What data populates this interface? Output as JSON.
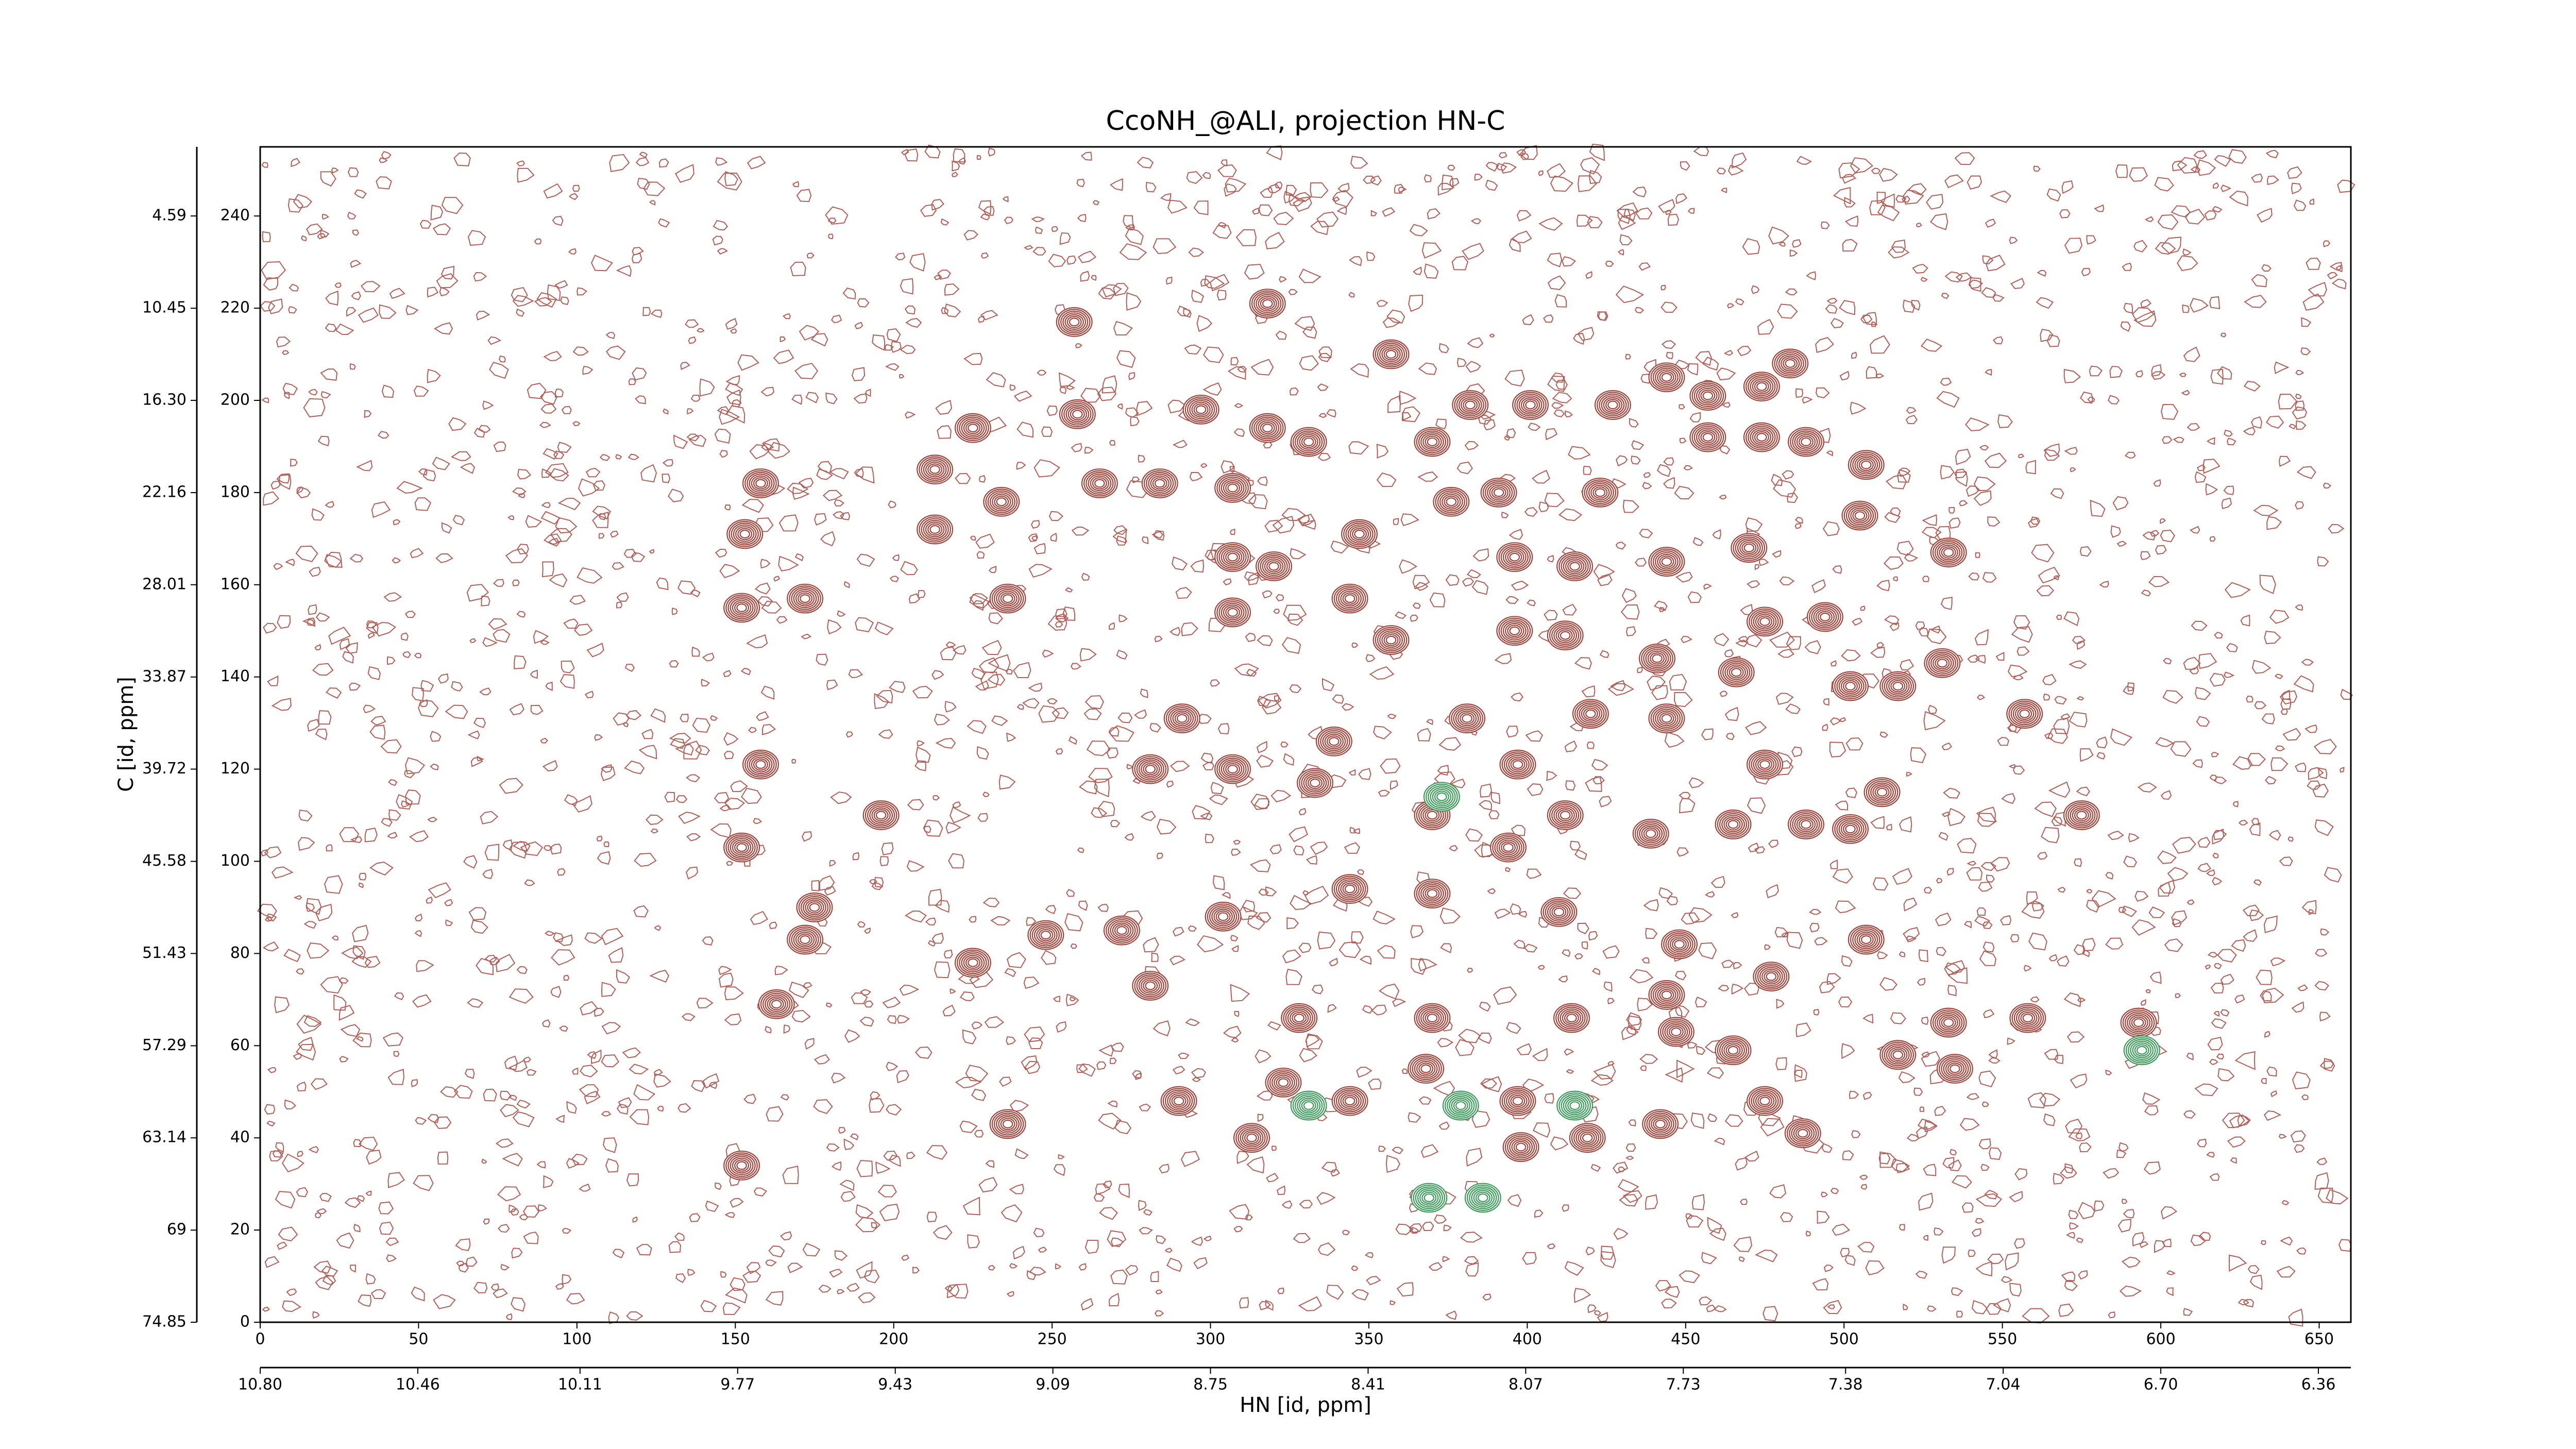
{
  "chart_data": {
    "type": "contour",
    "title": "CcoNH_@ALI, projection HN-C",
    "x_label": "HN [id, ppm]",
    "y_label": "C [id, ppm]",
    "xlim": [
      0,
      660
    ],
    "xticks": [
      0,
      50,
      100,
      150,
      200,
      250,
      300,
      350,
      400,
      450,
      500,
      550,
      600,
      650
    ],
    "ylim": [
      0,
      255
    ],
    "yticks": [
      0,
      20,
      40,
      60,
      80,
      100,
      120,
      140,
      160,
      180,
      200,
      220,
      240
    ],
    "x2lim": [
      10.8,
      6.29
    ],
    "x2ticks": [
      {
        "value": 10.8,
        "label": "10.80"
      },
      {
        "value": 10.46,
        "label": "10.46"
      },
      {
        "value": 10.11,
        "label": "10.11"
      },
      {
        "value": 9.77,
        "label": "9.77"
      },
      {
        "value": 9.43,
        "label": "9.43"
      },
      {
        "value": 9.09,
        "label": "9.09"
      },
      {
        "value": 8.75,
        "label": "8.75"
      },
      {
        "value": 8.41,
        "label": "8.41"
      },
      {
        "value": 8.07,
        "label": "8.07"
      },
      {
        "value": 7.73,
        "label": "7.73"
      },
      {
        "value": 7.38,
        "label": "7.38"
      },
      {
        "value": 7.04,
        "label": "7.04"
      },
      {
        "value": 6.7,
        "label": "6.70"
      },
      {
        "value": 6.36,
        "label": "6.36"
      }
    ],
    "y2lim": [
      74.85,
      0.2
    ],
    "y2ticks": [
      74.85,
      69,
      {
        "value": 63.14,
        "label": "63.14"
      },
      {
        "value": 57.29,
        "label": "57.29"
      },
      {
        "value": 51.43,
        "label": "51.43"
      },
      {
        "value": 45.58,
        "label": "45.58"
      },
      {
        "value": 39.72,
        "label": "39.72"
      },
      {
        "value": 33.87,
        "label": "33.87"
      },
      {
        "value": 28.01,
        "label": "28.01"
      },
      {
        "value": 22.16,
        "label": "22.16"
      },
      {
        "value": 16.3,
        "label": "16.30"
      },
      {
        "value": 10.45,
        "label": "10.45"
      },
      {
        "value": 4.59,
        "label": "4.59"
      }
    ],
    "peaks": {
      "positive": {
        "color": "#a0453c",
        "x": [
          318,
          257,
          258,
          225,
          297,
          318,
          357,
          370,
          382,
          401,
          427,
          444,
          457,
          474,
          483,
          457,
          474,
          488,
          507,
          505,
          213,
          234,
          158,
          153,
          213,
          265,
          284,
          307,
          331,
          347,
          376,
          391,
          423,
          307,
          320,
          344,
          396,
          415,
          444,
          470,
          533,
          172,
          152,
          236,
          307,
          357,
          396,
          412,
          475,
          494,
          441,
          466,
          502,
          517,
          531,
          557,
          291,
          339,
          381,
          420,
          444,
          158,
          196,
          281,
          307,
          333,
          370,
          397,
          412,
          439,
          465,
          488,
          502,
          512,
          575,
          475,
          152,
          394,
          175,
          172,
          248,
          272,
          304,
          344,
          370,
          410,
          448,
          507,
          163,
          225,
          281,
          328,
          370,
          414,
          444,
          477,
          533,
          558,
          593,
          368,
          447,
          465,
          517,
          535,
          323,
          344,
          397,
          475,
          290,
          236,
          313,
          398,
          419,
          487,
          442,
          152
        ],
        "y": [
          221,
          217,
          197,
          194,
          198,
          194,
          210,
          191,
          199,
          199,
          199,
          205,
          201,
          203,
          208,
          192,
          192,
          191,
          186,
          175,
          185,
          178,
          182,
          171,
          172,
          182,
          182,
          181,
          191,
          171,
          178,
          180,
          180,
          166,
          164,
          157,
          166,
          164,
          165,
          168,
          167,
          157,
          155,
          157,
          154,
          148,
          150,
          149,
          152,
          153,
          144,
          141,
          138,
          138,
          143,
          132,
          131,
          126,
          131,
          132,
          131,
          121,
          110,
          120,
          120,
          117,
          110,
          121,
          110,
          106,
          108,
          108,
          107,
          115,
          110,
          121,
          103,
          103,
          90,
          83,
          84,
          85,
          88,
          94,
          93,
          89,
          82,
          83,
          69,
          78,
          73,
          66,
          66,
          66,
          71,
          75,
          65,
          66,
          65,
          55,
          63,
          59,
          58,
          55,
          52,
          48,
          48,
          48,
          48,
          43,
          40,
          38,
          40,
          41,
          43,
          34
        ]
      },
      "negative": {
        "color": "#3c9a5a",
        "x": [
          369,
          379,
          415,
          331,
          373,
          386,
          594
        ],
        "y": [
          27,
          47,
          47,
          47,
          114,
          27,
          59
        ]
      }
    }
  }
}
